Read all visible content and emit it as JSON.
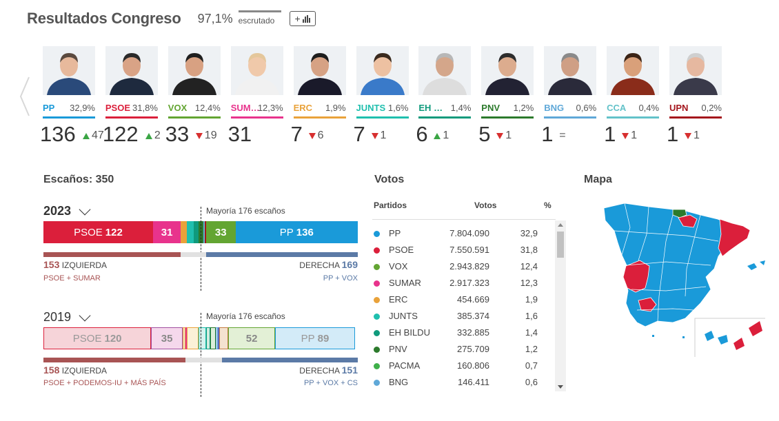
{
  "header": {
    "title": "Resultados Congreso",
    "scrutiny_pct": "97,1%",
    "scrutiny_label": "escrutado",
    "add_button": "+"
  },
  "parties": [
    {
      "name": "PP",
      "pct": "32,9%",
      "seats": "136",
      "diff": "47",
      "trend": "up",
      "color": "#1a9ad9"
    },
    {
      "name": "PSOE",
      "pct": "31,8%",
      "seats": "122",
      "diff": "2",
      "trend": "up",
      "color": "#db1f3b"
    },
    {
      "name": "VOX",
      "pct": "12,4%",
      "seats": "33",
      "diff": "19",
      "trend": "down",
      "color": "#63a532"
    },
    {
      "name": "SUMAR",
      "pct": "12,3%",
      "seats": "31",
      "diff": "",
      "trend": "none",
      "color": "#e8338c"
    },
    {
      "name": "ERC",
      "pct": "1,9%",
      "seats": "7",
      "diff": "6",
      "trend": "down",
      "color": "#e9a23a"
    },
    {
      "name": "JUNTS",
      "pct": "1,6%",
      "seats": "7",
      "diff": "1",
      "trend": "down",
      "color": "#1fbfae"
    },
    {
      "name": "EH BILDU",
      "pct": "1,4%",
      "seats": "6",
      "diff": "1",
      "trend": "up",
      "color": "#0f9a7c"
    },
    {
      "name": "PNV",
      "pct": "1,2%",
      "seats": "5",
      "diff": "1",
      "trend": "down",
      "color": "#2c7a2c"
    },
    {
      "name": "BNG",
      "pct": "0,6%",
      "seats": "1",
      "diff": "=",
      "trend": "equal",
      "color": "#5fa8d8"
    },
    {
      "name": "CCA",
      "pct": "0,4%",
      "seats": "1",
      "diff": "1",
      "trend": "down",
      "color": "#63c2c9"
    },
    {
      "name": "UPN",
      "pct": "0,2%",
      "seats": "1",
      "diff": "1",
      "trend": "down",
      "color": "#a4151c"
    }
  ],
  "seats_section": {
    "title": "Escaños: 350",
    "majority_label": "Mayoría 176 escaños",
    "y2023": {
      "year": "2023",
      "bar": [
        {
          "label": "PSOE",
          "value": "122",
          "color": "#db1f3b",
          "seats": 122
        },
        {
          "label": "",
          "value": "31",
          "color": "#e8338c",
          "seats": 31
        },
        {
          "label": "",
          "value": "",
          "color": "#e9a23a",
          "seats": 7
        },
        {
          "label": "",
          "value": "",
          "color": "#1fbfae",
          "seats": 7
        },
        {
          "label": "",
          "value": "",
          "color": "#0f9a7c",
          "seats": 6
        },
        {
          "label": "",
          "value": "",
          "color": "#2c7a2c",
          "seats": 5
        },
        {
          "label": "",
          "value": "",
          "color": "#5fa8d8",
          "seats": 1
        },
        {
          "label": "",
          "value": "",
          "color": "#63c2c9",
          "seats": 1
        },
        {
          "label": "",
          "value": "",
          "color": "#a4151c",
          "seats": 1
        },
        {
          "label": "",
          "value": "33",
          "color": "#63a532",
          "seats": 33
        },
        {
          "label": "PP",
          "value": "136",
          "color": "#1a9ad9",
          "seats": 136
        }
      ],
      "left_num": "153",
      "left_label": "IZQUIERDA",
      "left_sub": "PSOE + SUMAR",
      "right_label": "DERECHA",
      "right_num": "169",
      "right_sub": "PP + VOX",
      "left_seats": 153,
      "right_seats": 169
    },
    "y2019": {
      "year": "2019",
      "bar": [
        {
          "label": "PSOE",
          "value": "120",
          "color": "#f6d4d9",
          "border": "#db1f3b",
          "text": "#999",
          "seats": 120
        },
        {
          "label": "",
          "value": "35",
          "color": "#f5d8ec",
          "border": "#a04f9f",
          "text": "#888",
          "seats": 35
        },
        {
          "label": "",
          "value": "",
          "color": "#f3e7c9",
          "border": "#e9a23a",
          "text": "#888",
          "seats": 3
        },
        {
          "label": "",
          "value": "",
          "color": "#fce4d2",
          "border": "#e8338c",
          "text": "#888",
          "seats": 2
        },
        {
          "label": "",
          "value": "",
          "color": "#fbf1d7",
          "border": "#e9a23a",
          "text": "#888",
          "seats": 13
        },
        {
          "label": "",
          "value": "",
          "color": "#d6f2ee",
          "border": "#1fbfae",
          "text": "#888",
          "seats": 8
        },
        {
          "label": "",
          "value": "",
          "color": "#d2ecdf",
          "border": "#0f9a7c",
          "text": "#888",
          "seats": 5
        },
        {
          "label": "",
          "value": "",
          "color": "#dceedb",
          "border": "#2c7a2c",
          "text": "#888",
          "seats": 6
        },
        {
          "label": "",
          "value": "",
          "color": "#ddebf8",
          "border": "#5fa8d8",
          "text": "#888",
          "seats": 2
        },
        {
          "label": "",
          "value": "",
          "color": "#e4e8f5",
          "border": "#5c6bc0",
          "text": "#888",
          "seats": 2
        },
        {
          "label": "",
          "value": "",
          "color": "#f4e2d0",
          "border": "#c27b41",
          "text": "#888",
          "seats": 10
        },
        {
          "label": "",
          "value": "52",
          "color": "#e3f0d6",
          "border": "#63a532",
          "text": "#888",
          "seats": 52
        },
        {
          "label": "PP",
          "value": "89",
          "color": "#d3ebf8",
          "border": "#1a9ad9",
          "text": "#999",
          "seats": 89
        }
      ],
      "left_num": "158",
      "left_label": "IZQUIERDA",
      "left_sub": "PSOE + PODEMOS-IU + MÁS PAÍS",
      "right_label": "DERECHA",
      "right_num": "151",
      "right_sub": "PP + VOX + CS",
      "left_seats": 158,
      "right_seats": 151
    },
    "left_color": "#a85454",
    "right_color": "#5b7aa6"
  },
  "votes": {
    "title": "Votos",
    "col_party": "Partidos",
    "col_votes": "Votos",
    "col_pct": "%",
    "rows": [
      {
        "name": "PP",
        "votes": "7.804.090",
        "pct": "32,9",
        "color": "#1a9ad9"
      },
      {
        "name": "PSOE",
        "votes": "7.550.591",
        "pct": "31,8",
        "color": "#db1f3b"
      },
      {
        "name": "VOX",
        "votes": "2.943.829",
        "pct": "12,4",
        "color": "#63a532"
      },
      {
        "name": "SUMAR",
        "votes": "2.917.323",
        "pct": "12,3",
        "color": "#e8338c"
      },
      {
        "name": "ERC",
        "votes": "454.669",
        "pct": "1,9",
        "color": "#e9a23a"
      },
      {
        "name": "JUNTS",
        "votes": "385.374",
        "pct": "1,6",
        "color": "#1fbfae"
      },
      {
        "name": "EH BILDU",
        "votes": "332.885",
        "pct": "1,4",
        "color": "#0f9a7c"
      },
      {
        "name": "PNV",
        "votes": "275.709",
        "pct": "1,2",
        "color": "#2c7a2c"
      },
      {
        "name": "PACMA",
        "votes": "160.806",
        "pct": "0,7",
        "color": "#3fb04a"
      },
      {
        "name": "BNG",
        "votes": "146.411",
        "pct": "0,6",
        "color": "#5fa8d8"
      }
    ]
  },
  "map": {
    "title": "Mapa"
  }
}
